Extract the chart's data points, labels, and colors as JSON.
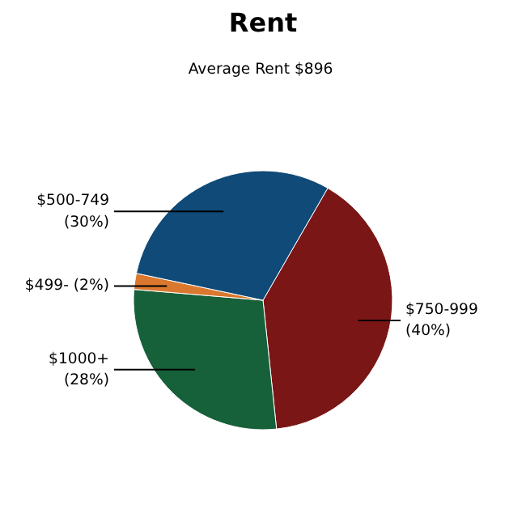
{
  "chart_data": {
    "type": "pie",
    "title": "Rent",
    "subtitle": "Average Rent  $896",
    "categories": [
      "$750-999",
      "$1000+",
      "$499-",
      "$500-749"
    ],
    "values": [
      40,
      28,
      2,
      30
    ],
    "colors": [
      "#7a1616",
      "#16603a",
      "#d9782e",
      "#0f4a78"
    ],
    "value_labels": [
      "(40%)",
      "(28%)",
      "(2%)",
      "(30%)"
    ]
  }
}
